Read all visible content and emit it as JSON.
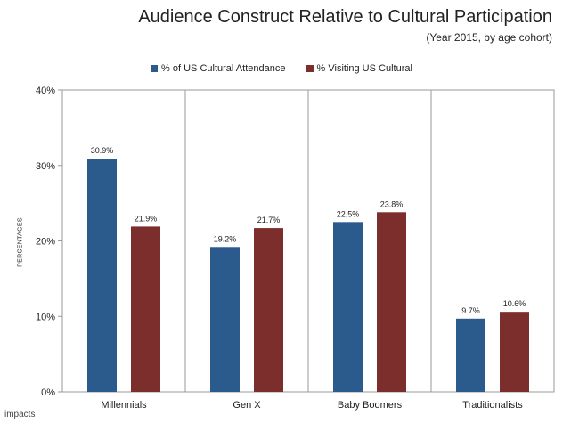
{
  "chart_data": {
    "type": "bar",
    "title": "Audience Construct Relative to Cultural Participation",
    "subtitle": "(Year 2015, by age cohort)",
    "ylabel": "PERCENTAGES",
    "xlabel": "",
    "categories": [
      "Millennials",
      "Gen X",
      "Baby Boomers",
      "Traditionalists"
    ],
    "series": [
      {
        "name": "% of US Cultural Attendance",
        "values": [
          30.9,
          19.2,
          22.5,
          9.7
        ],
        "labels": [
          "30.9%",
          "19.2%",
          "22.5%",
          "9.7%"
        ],
        "color": "#2b5b8c"
      },
      {
        "name": "% Visiting US Cultural",
        "values": [
          21.9,
          21.7,
          23.8,
          10.6
        ],
        "labels": [
          "21.9%",
          "21.7%",
          "23.8%",
          "10.6%"
        ],
        "color": "#7b2e2c"
      }
    ],
    "ylim": [
      0,
      40
    ],
    "yticks": [
      0,
      10,
      20,
      30,
      40
    ],
    "ytick_labels": [
      "0%",
      "10%",
      "20%",
      "30%",
      "40%"
    ],
    "grid": false,
    "legend_position": "top-center"
  },
  "footer": {
    "source": "impacts"
  }
}
